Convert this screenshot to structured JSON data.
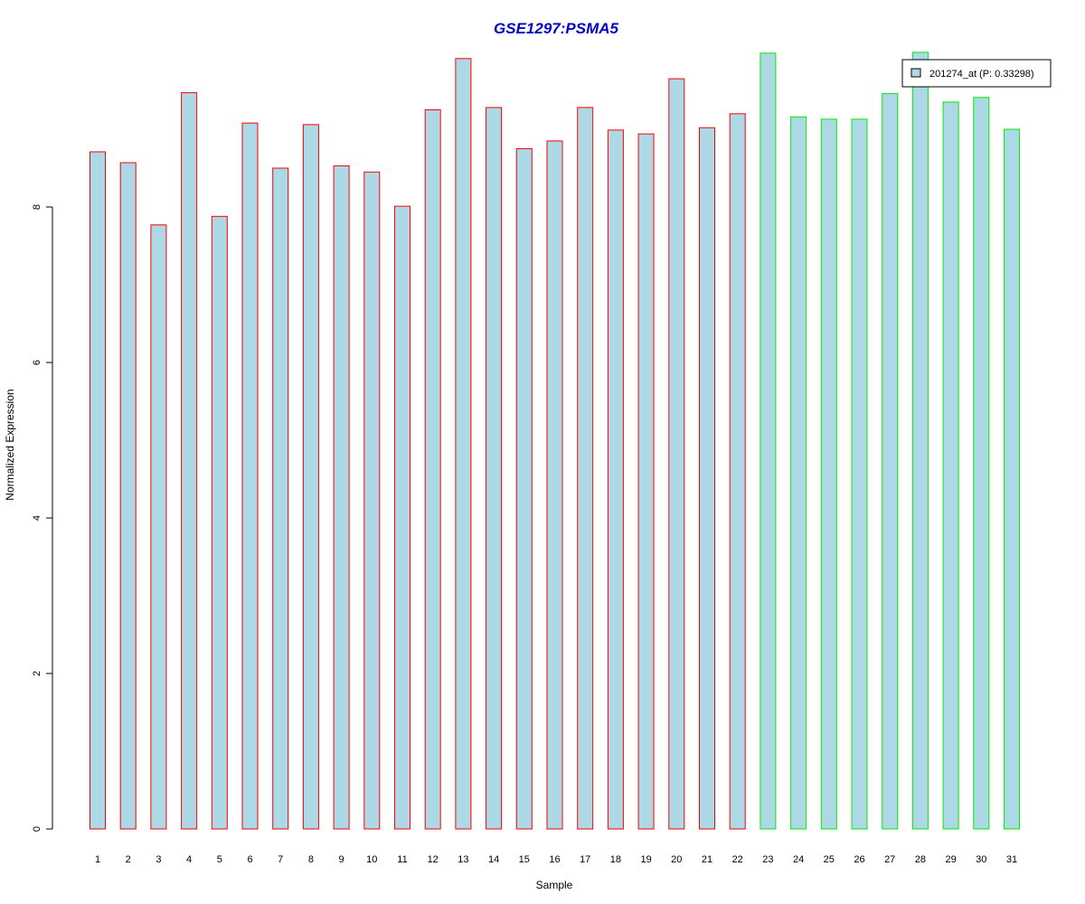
{
  "chart_data": {
    "type": "bar",
    "title": "GSE1297:PSMA5",
    "xlabel": "Sample",
    "ylabel": "Normalized Expression",
    "ylim": [
      0,
      10
    ],
    "yticks": [
      "0",
      "2",
      "4",
      "6",
      "8"
    ],
    "categories": [
      "1",
      "2",
      "3",
      "4",
      "5",
      "6",
      "7",
      "8",
      "9",
      "10",
      "11",
      "12",
      "13",
      "14",
      "15",
      "16",
      "17",
      "18",
      "19",
      "20",
      "21",
      "22",
      "23",
      "24",
      "25",
      "26",
      "27",
      "28",
      "29",
      "30",
      "31"
    ],
    "series": [
      {
        "name": "201274_at (P: 0.33298)",
        "values": [
          8.71,
          8.57,
          7.77,
          9.47,
          7.88,
          9.08,
          8.5,
          9.06,
          8.53,
          8.45,
          8.01,
          9.25,
          9.91,
          9.28,
          8.75,
          8.85,
          9.28,
          8.99,
          8.94,
          9.65,
          9.02,
          9.2,
          9.98,
          9.16,
          9.13,
          9.13,
          9.46,
          9.99,
          9.35,
          9.41,
          9.0
        ],
        "fill": "#add8e6"
      }
    ],
    "groups": [
      {
        "samples": [
          1,
          22
        ],
        "border": "#ff0000"
      },
      {
        "samples": [
          23,
          31
        ],
        "border": "#00ee00"
      }
    ],
    "title_color": "#0000cc",
    "grid": false,
    "legend_position": "top-right"
  }
}
